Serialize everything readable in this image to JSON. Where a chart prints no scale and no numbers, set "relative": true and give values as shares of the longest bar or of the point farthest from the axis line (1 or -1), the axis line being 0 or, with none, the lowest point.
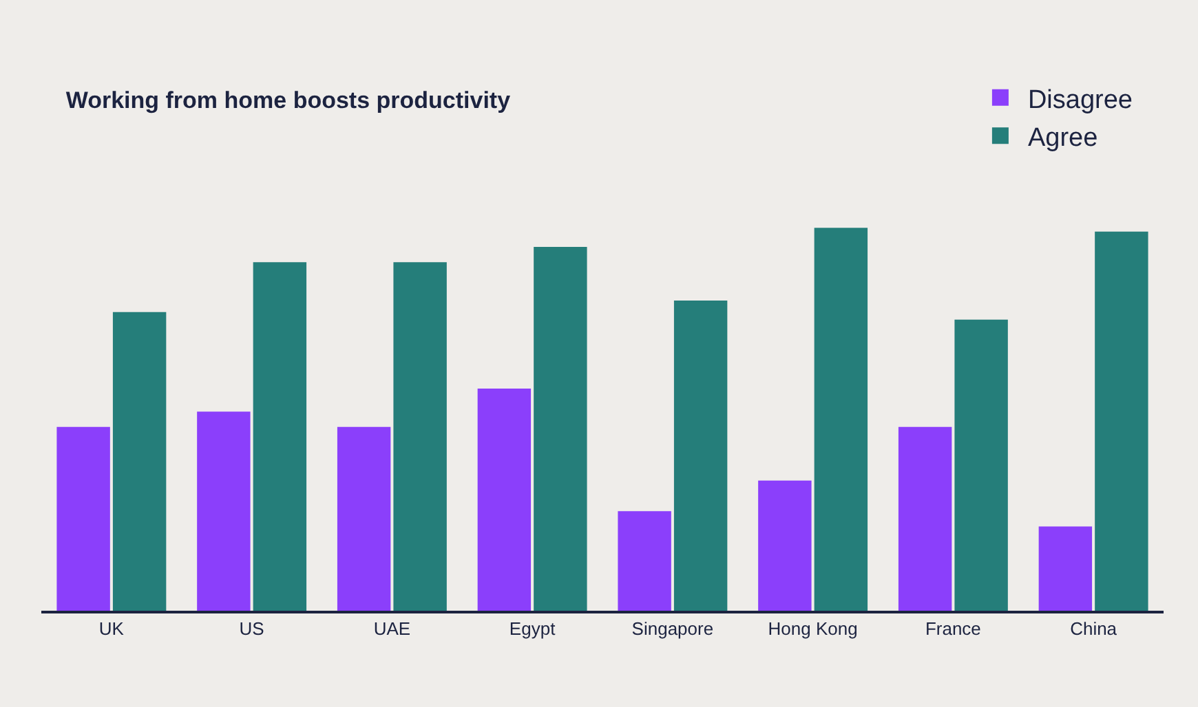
{
  "chart_data": {
    "type": "bar",
    "title": "Working from home boosts productivity",
    "relative": true,
    "legend": "top right",
    "grid": false,
    "categories": [
      "UK",
      "US",
      "UAE",
      "Egypt",
      "Singapore",
      "Hong Kong",
      "France",
      "China"
    ],
    "series": [
      {
        "name": "Disagree",
        "color": "#8b3ffb",
        "values": [
          0.48,
          0.52,
          0.48,
          0.58,
          0.26,
          0.34,
          0.48,
          0.22
        ]
      },
      {
        "name": "Agree",
        "color": "#257e7a",
        "values": [
          0.78,
          0.91,
          0.91,
          0.95,
          0.81,
          1,
          0.76,
          0.99
        ]
      }
    ]
  }
}
